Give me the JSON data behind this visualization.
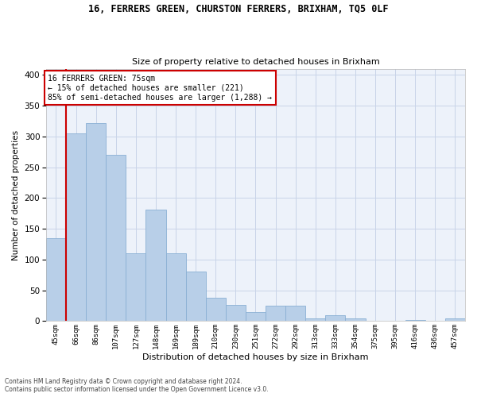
{
  "title1": "16, FERRERS GREEN, CHURSTON FERRERS, BRIXHAM, TQ5 0LF",
  "title2": "Size of property relative to detached houses in Brixham",
  "xlabel": "Distribution of detached houses by size in Brixham",
  "ylabel": "Number of detached properties",
  "categories": [
    "45sqm",
    "66sqm",
    "86sqm",
    "107sqm",
    "127sqm",
    "148sqm",
    "169sqm",
    "189sqm",
    "210sqm",
    "230sqm",
    "251sqm",
    "272sqm",
    "292sqm",
    "313sqm",
    "333sqm",
    "354sqm",
    "375sqm",
    "395sqm",
    "416sqm",
    "436sqm",
    "457sqm"
  ],
  "values": [
    135,
    305,
    322,
    270,
    110,
    181,
    110,
    80,
    38,
    26,
    15,
    25,
    25,
    5,
    10,
    5,
    1,
    0,
    2,
    0,
    5
  ],
  "bar_color": "#b8cfe8",
  "bar_edge_color": "#8aafd4",
  "vline_color": "#cc0000",
  "vline_pos": 0.5,
  "annotation_text": "16 FERRERS GREEN: 75sqm\n← 15% of detached houses are smaller (221)\n85% of semi-detached houses are larger (1,288) →",
  "annotation_box_color": "#ffffff",
  "annotation_box_edge": "#cc0000",
  "grid_color": "#c8d4e8",
  "bg_color": "#edf2fa",
  "footer1": "Contains HM Land Registry data © Crown copyright and database right 2024.",
  "footer2": "Contains public sector information licensed under the Open Government Licence v3.0.",
  "ylim": [
    0,
    410
  ],
  "yticks": [
    0,
    50,
    100,
    150,
    200,
    250,
    300,
    350,
    400
  ]
}
